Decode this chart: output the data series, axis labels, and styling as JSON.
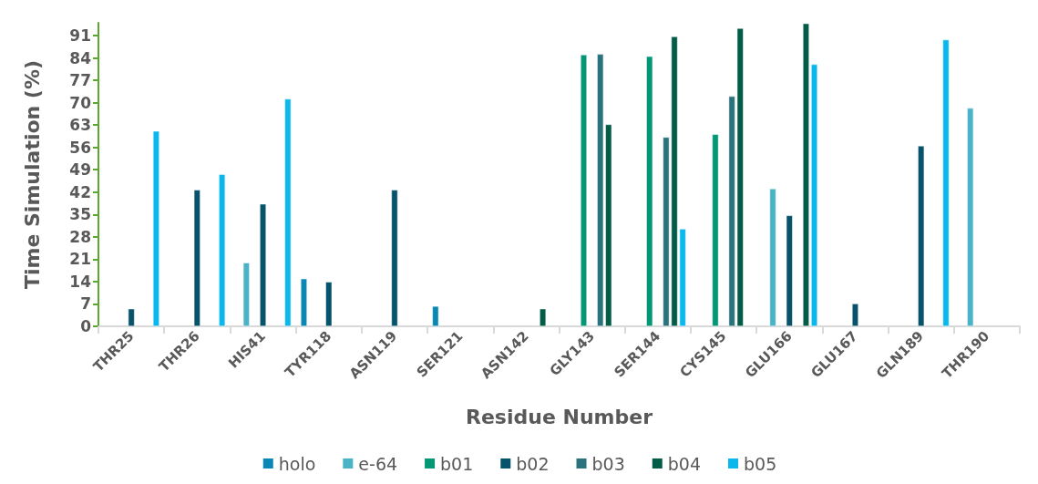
{
  "chart_data": {
    "type": "bar",
    "xlabel": "Residue Number",
    "ylabel": "Time Simulation (%)",
    "categories": [
      "THR25",
      "THR26",
      "HIS41",
      "TYR118",
      "ASN119",
      "SER121",
      "ASN142",
      "GLY143",
      "SER144",
      "CYS145",
      "GLU166",
      "GLU167",
      "GLN189",
      "THR190"
    ],
    "series": [
      {
        "name": "holo",
        "color": "#0a87b4",
        "values": [
          null,
          null,
          null,
          14.9,
          null,
          6.3,
          null,
          null,
          null,
          null,
          null,
          null,
          null,
          null
        ]
      },
      {
        "name": "e-64",
        "color": "#4ab3c6",
        "values": [
          null,
          null,
          19.9,
          null,
          null,
          null,
          null,
          null,
          null,
          null,
          43.1,
          null,
          null,
          68.3
        ]
      },
      {
        "name": "b01",
        "color": "#039775",
        "values": [
          null,
          null,
          null,
          null,
          null,
          null,
          null,
          85.0,
          84.5,
          60.1,
          null,
          null,
          null,
          null
        ]
      },
      {
        "name": "b02",
        "color": "#07536c",
        "values": [
          5.5,
          42.7,
          38.3,
          13.9,
          42.7,
          null,
          null,
          null,
          null,
          null,
          34.7,
          7.1,
          56.5,
          null
        ]
      },
      {
        "name": "b03",
        "color": "#2a727c",
        "values": [
          null,
          null,
          null,
          null,
          null,
          null,
          null,
          85.2,
          59.2,
          72.0,
          null,
          null,
          null,
          null
        ]
      },
      {
        "name": "b04",
        "color": "#035c47",
        "values": [
          null,
          null,
          null,
          null,
          null,
          null,
          5.5,
          63.2,
          90.7,
          93.3,
          94.8,
          null,
          null,
          null
        ]
      },
      {
        "name": "b05",
        "color": "#0bb8ee",
        "values": [
          61.1,
          47.6,
          71.2,
          null,
          null,
          null,
          null,
          null,
          30.5,
          null,
          82.0,
          null,
          89.7,
          null
        ]
      }
    ],
    "ylim": [
      0,
      95
    ],
    "yticks": [
      0,
      7,
      14,
      21,
      28,
      35,
      42,
      49,
      56,
      63,
      70,
      77,
      84,
      91
    ],
    "grid": false,
    "legend": "bottom"
  }
}
